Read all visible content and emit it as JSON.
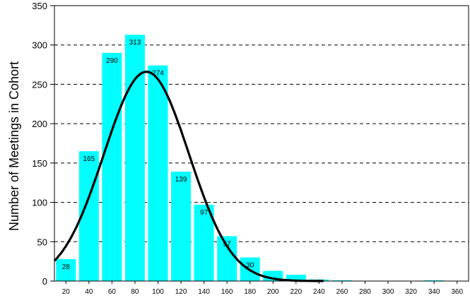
{
  "chart_data": {
    "type": "bar",
    "title": "",
    "xlabel": "",
    "ylabel": "Number of Meetings in Cohort",
    "ylim": [
      0,
      350
    ],
    "yticks": [
      0,
      50,
      100,
      150,
      200,
      250,
      300,
      350
    ],
    "grid": "horizontal dashed",
    "categories": [
      "20",
      "40",
      "60",
      "80",
      "100",
      "120",
      "140",
      "160",
      "180",
      "200",
      "220",
      "240",
      "260",
      "280",
      "300",
      "320",
      "340",
      "360"
    ],
    "values": [
      28,
      165,
      290,
      313,
      274,
      139,
      97,
      57,
      30,
      13,
      8,
      2,
      1,
      0,
      0,
      0,
      1,
      0
    ],
    "data_labels": [
      "28",
      "165",
      "290",
      "313",
      "274",
      "139",
      "97",
      "57",
      "30",
      "",
      "",
      "",
      "",
      "",
      "",
      "",
      "",
      ""
    ],
    "bar_color": "#00FFFF",
    "curve": {
      "type": "normal-fit",
      "peak_x": 90,
      "peak_y": 266,
      "sigma": 37,
      "color": "#000000"
    }
  }
}
